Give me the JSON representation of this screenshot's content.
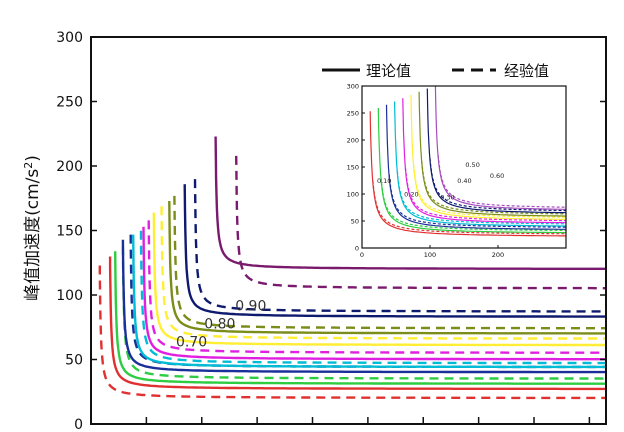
{
  "chart_data": {
    "type": "line",
    "ylabel": "峰值加速度(cm/s²)",
    "ylabel_main": "峰值加速度(cm/s",
    "ylabel_sup": "2",
    "ylabel_tail": ")",
    "ylim": [
      0,
      300
    ],
    "yticks": [
      0,
      50,
      100,
      150,
      200,
      250,
      300
    ],
    "xticks_count": 9,
    "legend": {
      "placement": "top-right",
      "entries": [
        {
          "label": "理论值",
          "style": "solid"
        },
        {
          "label": "经验值",
          "style": "dashed"
        }
      ]
    },
    "curve_labels": [
      {
        "text": "0.90",
        "x": 0.56,
        "y": 88
      },
      {
        "text": "0.80",
        "x": 0.44,
        "y": 74
      },
      {
        "text": "0.70",
        "x": 0.33,
        "y": 60
      }
    ],
    "series": [
      {
        "color": "#e03030",
        "dash": false,
        "x_asym": 0.035,
        "y_asym": 27
      },
      {
        "color": "#e03030",
        "dash": true,
        "x_asym": 0.015,
        "y_asym": 20
      },
      {
        "color": "#2ecc40",
        "dash": false,
        "x_asym": 0.045,
        "y_asym": 31
      },
      {
        "color": "#2ecc40",
        "dash": true,
        "x_asym": 0.06,
        "y_asym": 35
      },
      {
        "color": "#1a2f9a",
        "dash": false,
        "x_asym": 0.06,
        "y_asym": 40
      },
      {
        "color": "#1a2f9a",
        "dash": true,
        "x_asym": 0.075,
        "y_asym": 44
      },
      {
        "color": "#00bcd4",
        "dash": false,
        "x_asym": 0.08,
        "y_asym": 44
      },
      {
        "color": "#00bcd4",
        "dash": true,
        "x_asym": 0.095,
        "y_asym": 47
      },
      {
        "color": "#e020e0",
        "dash": false,
        "x_asym": 0.1,
        "y_asym": 50
      },
      {
        "color": "#e020e0",
        "dash": true,
        "x_asym": 0.11,
        "y_asym": 55
      },
      {
        "color": "#ffee33",
        "dash": false,
        "x_asym": 0.12,
        "y_asym": 61
      },
      {
        "color": "#ffee33",
        "dash": true,
        "x_asym": 0.135,
        "y_asym": 66
      },
      {
        "color": "#7a8c1a",
        "dash": false,
        "x_asym": 0.15,
        "y_asym": 70
      },
      {
        "color": "#7a8c1a",
        "dash": true,
        "x_asym": 0.16,
        "y_asym": 74
      },
      {
        "color": "#0d1a6e",
        "dash": false,
        "x_asym": 0.18,
        "y_asym": 83
      },
      {
        "color": "#0d1a6e",
        "dash": true,
        "x_asym": 0.2,
        "y_asym": 87
      },
      {
        "color": "#7a1a6e",
        "dash": false,
        "x_asym": 0.24,
        "y_asym": 120
      },
      {
        "color": "#7a1a6e",
        "dash": true,
        "x_asym": 0.28,
        "y_asym": 105
      }
    ],
    "inset": {
      "type": "line",
      "ylim": [
        0,
        300
      ],
      "xlim": [
        0,
        300
      ],
      "yticks": [
        0,
        50,
        100,
        150,
        200,
        250,
        300
      ],
      "yticklabels": [
        "0",
        "50",
        "100",
        "150",
        "200",
        "250",
        "300"
      ],
      "xticks": [
        0,
        100,
        200
      ],
      "xticklabels": [
        "0",
        "100",
        "200"
      ],
      "curve_labels": [
        {
          "text": "0.10",
          "x": 22,
          "y": 120
        },
        {
          "text": "0.20",
          "x": 62,
          "y": 95
        },
        {
          "text": "0.30",
          "x": 115,
          "y": 90
        },
        {
          "text": "0.40",
          "x": 140,
          "y": 120
        },
        {
          "text": "0.50",
          "x": 152,
          "y": 150
        },
        {
          "text": "0.60",
          "x": 188,
          "y": 130
        }
      ]
    }
  }
}
